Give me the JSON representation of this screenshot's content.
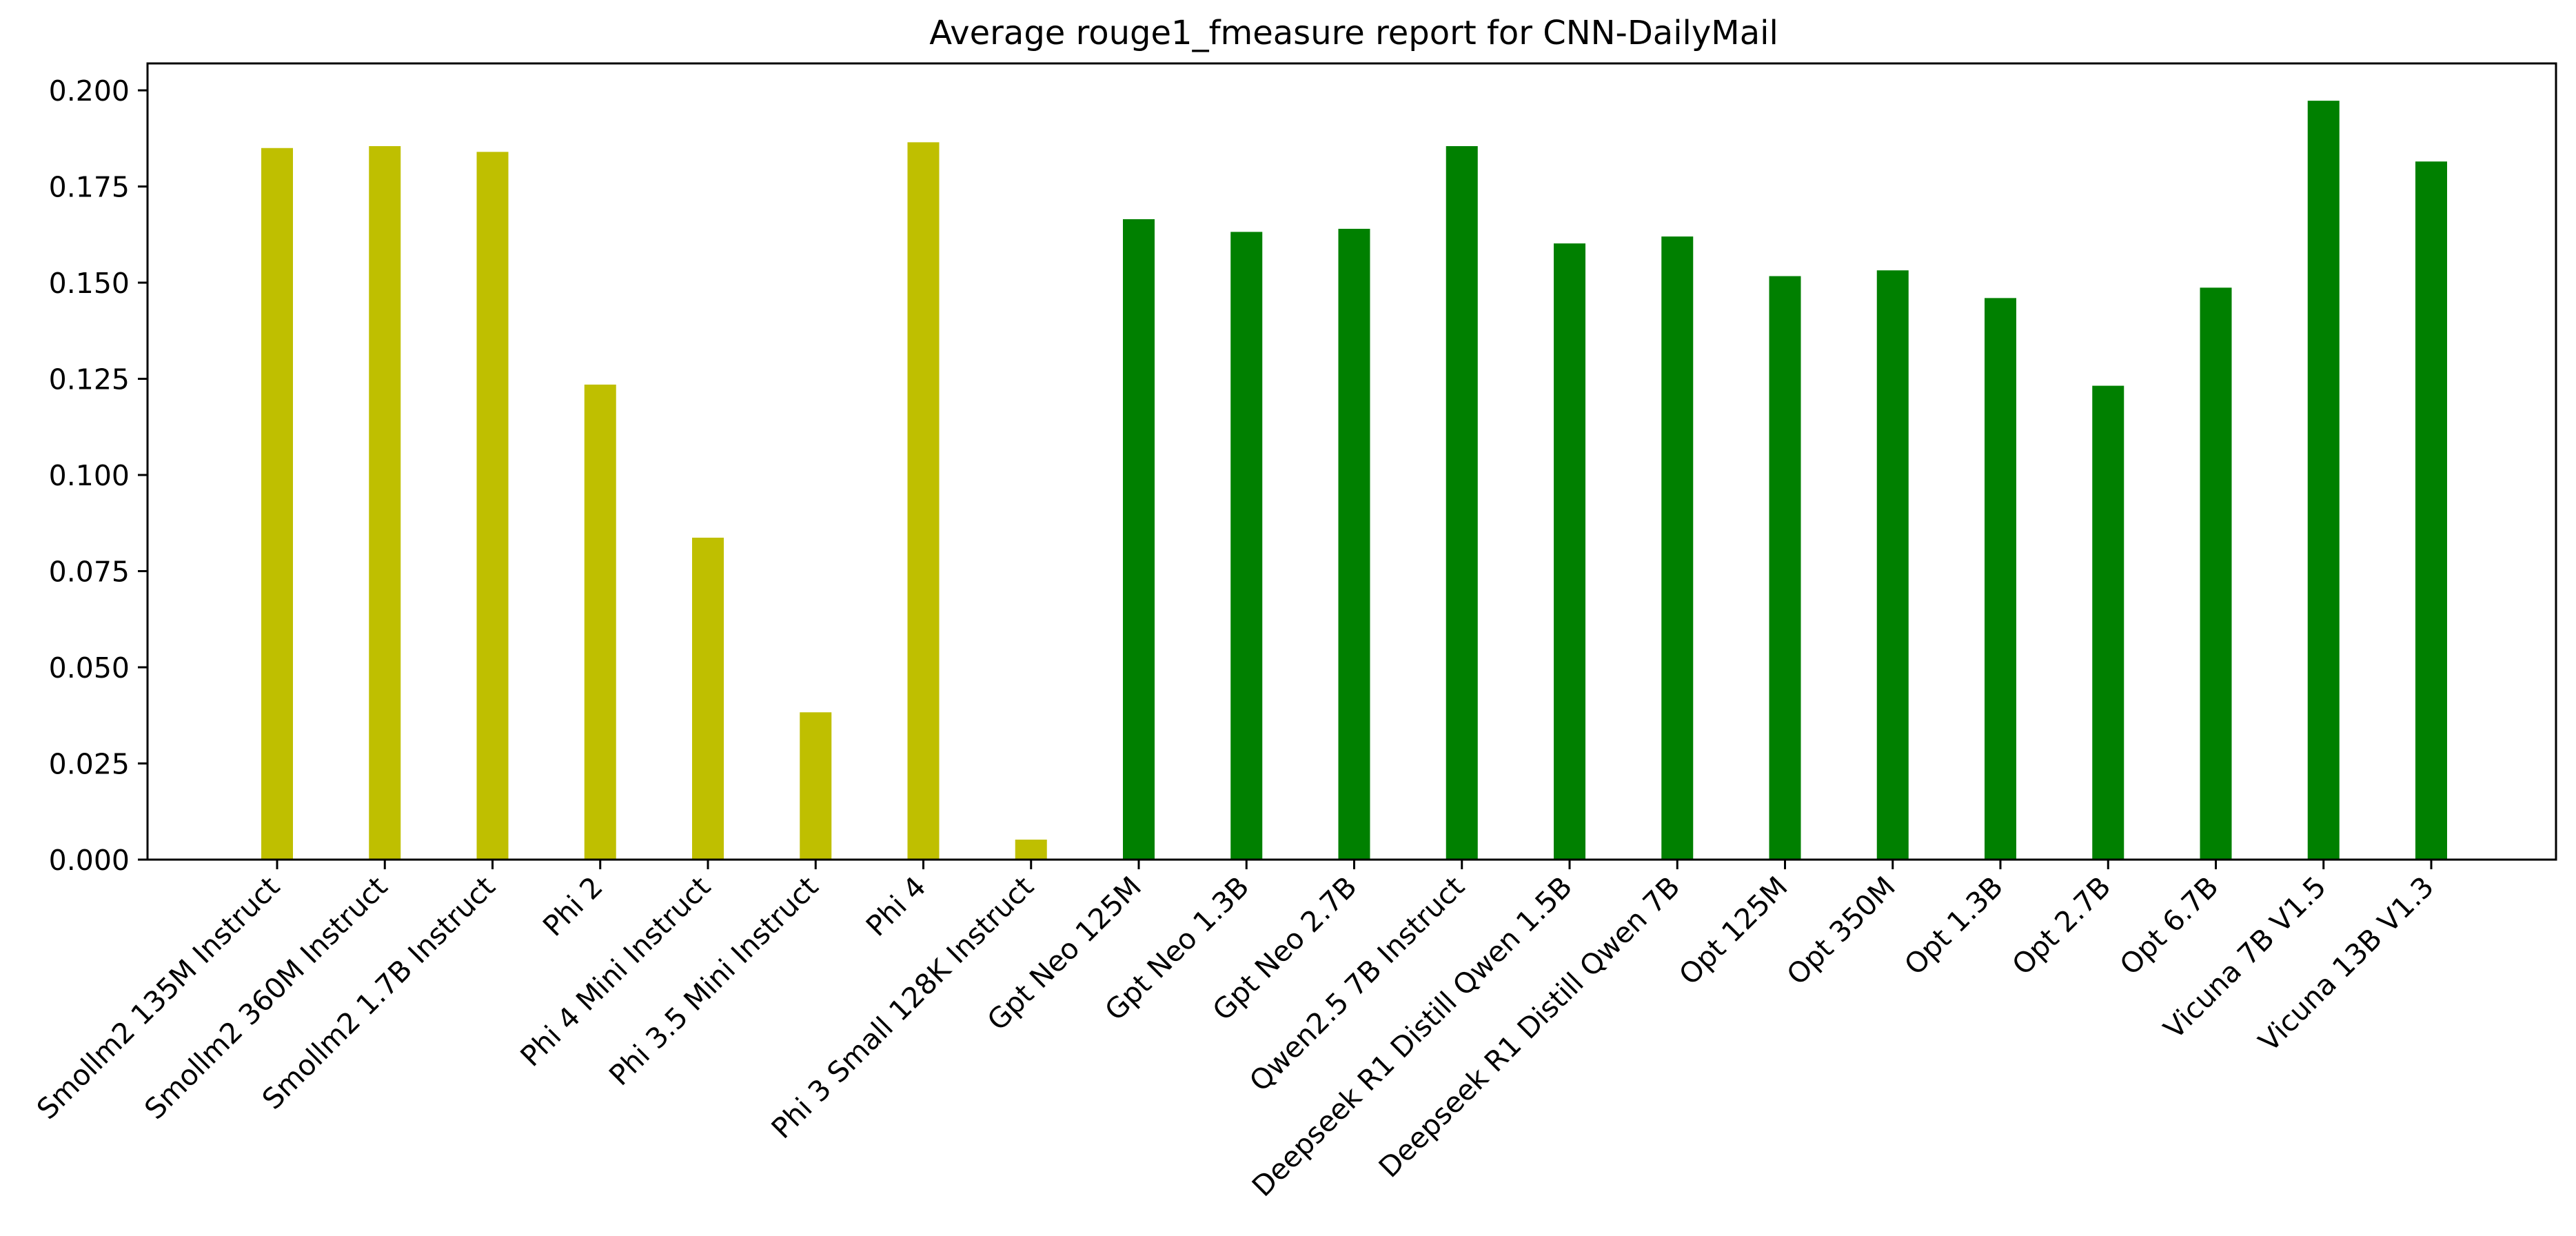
{
  "chart_data": {
    "type": "bar",
    "title": "Average rouge1_fmeasure report for CNN-DailyMail",
    "xlabel": "",
    "ylabel": "",
    "ylim": [
      0,
      0.207
    ],
    "yticks": [
      0.0,
      0.025,
      0.05,
      0.075,
      0.1,
      0.125,
      0.15,
      0.175,
      0.2
    ],
    "ytick_labels": [
      "0.000",
      "0.025",
      "0.050",
      "0.075",
      "0.100",
      "0.125",
      "0.150",
      "0.175",
      "0.200"
    ],
    "grid": false,
    "legend": "none",
    "categories": [
      "Smollm2 135M Instruct",
      "Smollm2 360M Instruct",
      "Smollm2 1.7B Instruct",
      "Phi 2",
      "Phi 4 Mini Instruct",
      "Phi 3.5 Mini Instruct",
      "Phi 4",
      "Phi 3 Small 128K Instruct",
      "Gpt Neo 125M",
      "Gpt Neo 1.3B",
      "Gpt Neo 2.7B",
      "Qwen2.5 7B Instruct",
      "Deepseek R1 Distill Qwen 1.5B",
      "Deepseek R1 Distill Qwen 7B",
      "Opt 125M",
      "Opt 350M",
      "Opt 1.3B",
      "Opt 2.7B",
      "Opt 6.7B",
      "Vicuna 7B V1.5",
      "Vicuna 13B V1.3"
    ],
    "values": [
      0.185,
      0.1855,
      0.184,
      0.1235,
      0.0837,
      0.0383,
      0.1865,
      0.0052,
      0.1665,
      0.1632,
      0.164,
      0.1855,
      0.1602,
      0.162,
      0.1517,
      0.1532,
      0.146,
      0.1232,
      0.1487,
      0.1973,
      0.1815
    ],
    "colors": [
      "#bfbf00",
      "#bfbf00",
      "#bfbf00",
      "#bfbf00",
      "#bfbf00",
      "#bfbf00",
      "#bfbf00",
      "#bfbf00",
      "#008000",
      "#008000",
      "#008000",
      "#008000",
      "#008000",
      "#008000",
      "#008000",
      "#008000",
      "#008000",
      "#008000",
      "#008000",
      "#008000",
      "#008000"
    ]
  }
}
